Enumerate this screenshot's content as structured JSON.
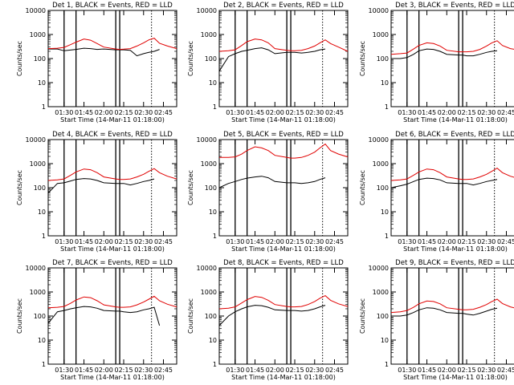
{
  "figure": {
    "xlabel": "Start Time (14-Mar-11 01:18:00)",
    "ylabel": "Counts/sec",
    "xticks": [
      "01:30",
      "01:45",
      "02:00",
      "02:15",
      "02:30",
      "02:45"
    ],
    "yticks": [
      "1",
      "10",
      "100",
      "1000",
      "10000"
    ],
    "series_colors": {
      "events": "#000000",
      "lld": "#e00000"
    }
  },
  "chart_data": [
    {
      "type": "line",
      "title": "Det 1, BLACK = Events, RED = LLD",
      "xlim": [
        "01:18",
        "02:55"
      ],
      "ylim": [
        1,
        10000
      ],
      "yscale": "log",
      "markers": [
        "01:30",
        "01:39",
        "02:09",
        "02:12"
      ],
      "dotted_line": "02:36",
      "series": [
        {
          "name": "Events",
          "x": [
            "01:18",
            "01:25",
            "01:30",
            "01:39",
            "01:45",
            "01:50",
            "01:55",
            "02:00",
            "02:09",
            "02:12",
            "02:15",
            "02:20",
            "02:25",
            "02:30",
            "02:34",
            "02:38",
            "02:42"
          ],
          "y": [
            250,
            250,
            210,
            240,
            270,
            260,
            240,
            250,
            230,
            230,
            230,
            220,
            130,
            160,
            180,
            200,
            240
          ]
        },
        {
          "name": "LLD",
          "x": [
            "01:18",
            "01:25",
            "01:30",
            "01:35",
            "01:39",
            "01:45",
            "01:50",
            "01:55",
            "02:00",
            "02:09",
            "02:12",
            "02:15",
            "02:20",
            "02:25",
            "02:30",
            "02:34",
            "02:38",
            "02:42",
            "02:48",
            "02:55"
          ],
          "y": [
            260,
            270,
            290,
            380,
            480,
            650,
            580,
            420,
            300,
            250,
            240,
            245,
            260,
            330,
            450,
            600,
            700,
            430,
            330,
            260
          ]
        }
      ]
    },
    {
      "type": "line",
      "title": "Det 2, BLACK = Events, RED = LLD",
      "xlim": [
        "01:18",
        "02:55"
      ],
      "ylim": [
        1,
        10000
      ],
      "yscale": "log",
      "markers": [
        "01:30",
        "01:39",
        "02:09",
        "02:12"
      ],
      "dotted_line": "02:36",
      "series": [
        {
          "name": "Events",
          "x": [
            "01:18",
            "01:25",
            "01:30",
            "01:35",
            "01:39",
            "01:45",
            "01:50",
            "01:55",
            "02:00",
            "02:09",
            "02:12",
            "02:15",
            "02:20",
            "02:25",
            "02:30",
            "02:34",
            "02:38"
          ],
          "y": [
            30,
            120,
            160,
            200,
            220,
            260,
            280,
            230,
            160,
            180,
            180,
            180,
            170,
            180,
            200,
            230,
            250
          ]
        },
        {
          "name": "LLD",
          "x": [
            "01:18",
            "01:25",
            "01:30",
            "01:35",
            "01:39",
            "01:45",
            "01:50",
            "01:55",
            "02:00",
            "02:09",
            "02:12",
            "02:15",
            "02:20",
            "02:25",
            "02:30",
            "02:34",
            "02:38",
            "02:42",
            "02:48",
            "02:55"
          ],
          "y": [
            200,
            210,
            230,
            350,
            500,
            650,
            600,
            450,
            260,
            220,
            210,
            210,
            220,
            260,
            330,
            450,
            600,
            420,
            300,
            200
          ]
        }
      ]
    },
    {
      "type": "line",
      "title": "Det 3, BLACK = Events, RED = LLD",
      "xlim": [
        "01:18",
        "02:55"
      ],
      "ylim": [
        1,
        10000
      ],
      "yscale": "log",
      "markers": [
        "01:30",
        "01:39",
        "02:09",
        "02:12"
      ],
      "dotted_line": "02:36",
      "series": [
        {
          "name": "Events",
          "x": [
            "01:18",
            "01:25",
            "01:30",
            "01:35",
            "01:39",
            "01:45",
            "01:50",
            "01:55",
            "02:00",
            "02:09",
            "02:12",
            "02:15",
            "02:20",
            "02:25",
            "02:30",
            "02:34",
            "02:38"
          ],
          "y": [
            100,
            100,
            110,
            150,
            210,
            250,
            240,
            200,
            150,
            140,
            140,
            130,
            130,
            150,
            180,
            200,
            210
          ]
        },
        {
          "name": "LLD",
          "x": [
            "01:18",
            "01:25",
            "01:30",
            "01:35",
            "01:39",
            "01:45",
            "01:50",
            "01:55",
            "02:00",
            "02:09",
            "02:12",
            "02:15",
            "02:20",
            "02:25",
            "02:30",
            "02:34",
            "02:38",
            "02:42",
            "02:48",
            "02:55"
          ],
          "y": [
            150,
            160,
            170,
            250,
            350,
            450,
            420,
            330,
            220,
            190,
            190,
            190,
            200,
            240,
            330,
            450,
            550,
            350,
            260,
            220
          ]
        }
      ]
    },
    {
      "type": "line",
      "title": "Det 4, BLACK = Events, RED = LLD",
      "xlim": [
        "01:18",
        "02:55"
      ],
      "ylim": [
        1,
        10000
      ],
      "yscale": "log",
      "markers": [
        "01:30",
        "01:39",
        "02:09",
        "02:12"
      ],
      "dotted_line": "02:36",
      "series": [
        {
          "name": "Events",
          "x": [
            "01:18",
            "01:25",
            "01:30",
            "01:35",
            "01:39",
            "01:45",
            "01:50",
            "01:55",
            "02:00",
            "02:09",
            "02:12",
            "02:15",
            "02:20",
            "02:25",
            "02:30",
            "02:34",
            "02:38"
          ],
          "y": [
            60,
            150,
            160,
            190,
            220,
            240,
            230,
            200,
            160,
            150,
            150,
            150,
            130,
            150,
            180,
            200,
            230
          ]
        },
        {
          "name": "LLD",
          "x": [
            "01:18",
            "01:25",
            "01:30",
            "01:35",
            "01:39",
            "01:45",
            "01:50",
            "01:55",
            "02:00",
            "02:09",
            "02:12",
            "02:15",
            "02:20",
            "02:25",
            "02:30",
            "02:34",
            "02:38",
            "02:42",
            "02:48",
            "02:55"
          ],
          "y": [
            200,
            210,
            230,
            330,
            450,
            600,
            560,
            420,
            280,
            230,
            220,
            220,
            230,
            280,
            360,
            480,
            620,
            420,
            300,
            230
          ]
        }
      ]
    },
    {
      "type": "line",
      "title": "Det 5, BLACK = Events, RED = LLD",
      "xlim": [
        "01:18",
        "02:55"
      ],
      "ylim": [
        1,
        10000
      ],
      "yscale": "log",
      "markers": [
        "01:30",
        "01:39",
        "02:09",
        "02:12"
      ],
      "dotted_line": "02:36",
      "series": [
        {
          "name": "Events",
          "x": [
            "01:18",
            "01:25",
            "01:30",
            "01:35",
            "01:39",
            "01:45",
            "01:50",
            "01:55",
            "02:00",
            "02:09",
            "02:12",
            "02:15",
            "02:20",
            "02:25",
            "02:30",
            "02:34",
            "02:38"
          ],
          "y": [
            100,
            150,
            180,
            220,
            250,
            280,
            300,
            260,
            180,
            160,
            160,
            160,
            150,
            160,
            180,
            220,
            260
          ]
        },
        {
          "name": "LLD",
          "x": [
            "01:18",
            "01:25",
            "01:30",
            "01:35",
            "01:39",
            "01:45",
            "01:50",
            "01:55",
            "02:00",
            "02:09",
            "02:12",
            "02:15",
            "02:20",
            "02:25",
            "02:30",
            "02:34",
            "02:38",
            "02:42",
            "02:48",
            "02:55"
          ],
          "y": [
            1800,
            1800,
            1900,
            2500,
            3500,
            5000,
            4500,
            3500,
            2200,
            1800,
            1700,
            1700,
            1800,
            2200,
            3000,
            4500,
            6500,
            3500,
            2500,
            1900
          ]
        }
      ]
    },
    {
      "type": "line",
      "title": "Det 6, BLACK = Events, RED = LLD",
      "xlim": [
        "01:18",
        "02:55"
      ],
      "ylim": [
        1,
        10000
      ],
      "yscale": "log",
      "markers": [
        "01:30",
        "01:39",
        "02:09",
        "02:12"
      ],
      "dotted_line": "02:36",
      "series": [
        {
          "name": "Events",
          "x": [
            "01:18",
            "01:25",
            "01:30",
            "01:35",
            "01:39",
            "01:45",
            "01:50",
            "01:55",
            "02:00",
            "02:09",
            "02:12",
            "02:15",
            "02:20",
            "02:25",
            "02:30",
            "02:34",
            "02:38"
          ],
          "y": [
            100,
            120,
            140,
            180,
            220,
            250,
            240,
            210,
            160,
            150,
            150,
            150,
            130,
            150,
            180,
            200,
            220
          ]
        },
        {
          "name": "LLD",
          "x": [
            "01:18",
            "01:25",
            "01:30",
            "01:35",
            "01:39",
            "01:45",
            "01:50",
            "01:55",
            "02:00",
            "02:09",
            "02:12",
            "02:15",
            "02:20",
            "02:25",
            "02:30",
            "02:34",
            "02:38",
            "02:42",
            "02:48",
            "02:55"
          ],
          "y": [
            200,
            210,
            230,
            330,
            450,
            600,
            560,
            420,
            280,
            230,
            220,
            220,
            230,
            280,
            360,
            480,
            650,
            420,
            300,
            230
          ]
        }
      ]
    },
    {
      "type": "line",
      "title": "Det 7, BLACK = Events, RED = LLD",
      "xlim": [
        "01:18",
        "02:55"
      ],
      "ylim": [
        1,
        10000
      ],
      "yscale": "log",
      "markers": [
        "01:30",
        "01:39",
        "02:09",
        "02:12"
      ],
      "dotted_line": "02:36",
      "series": [
        {
          "name": "Events",
          "x": [
            "01:18",
            "01:25",
            "01:30",
            "01:35",
            "01:39",
            "01:45",
            "01:50",
            "01:55",
            "02:00",
            "02:09",
            "02:12",
            "02:15",
            "02:20",
            "02:25",
            "02:30",
            "02:34",
            "02:38",
            "02:42"
          ],
          "y": [
            50,
            150,
            170,
            200,
            220,
            250,
            240,
            210,
            170,
            160,
            160,
            150,
            140,
            150,
            180,
            200,
            230,
            40
          ]
        },
        {
          "name": "LLD",
          "x": [
            "01:18",
            "01:25",
            "01:30",
            "01:35",
            "01:39",
            "01:45",
            "01:50",
            "01:55",
            "02:00",
            "02:09",
            "02:12",
            "02:15",
            "02:20",
            "02:25",
            "02:30",
            "02:34",
            "02:38",
            "02:42",
            "02:48",
            "02:55"
          ],
          "y": [
            220,
            230,
            250,
            340,
            460,
            620,
            580,
            430,
            290,
            240,
            230,
            230,
            240,
            290,
            380,
            500,
            660,
            430,
            310,
            240
          ]
        }
      ]
    },
    {
      "type": "line",
      "title": "Det 8, BLACK = Events, RED = LLD",
      "xlim": [
        "01:18",
        "02:55"
      ],
      "ylim": [
        1,
        10000
      ],
      "yscale": "log",
      "markers": [
        "01:30",
        "01:39",
        "02:09",
        "02:12"
      ],
      "dotted_line": "02:36",
      "series": [
        {
          "name": "Events",
          "x": [
            "01:18",
            "01:25",
            "01:30",
            "01:35",
            "01:39",
            "01:45",
            "01:50",
            "01:55",
            "02:00",
            "02:09",
            "02:12",
            "02:15",
            "02:20",
            "02:25",
            "02:30",
            "02:34",
            "02:38"
          ],
          "y": [
            40,
            100,
            150,
            200,
            240,
            280,
            270,
            230,
            180,
            170,
            170,
            170,
            160,
            170,
            200,
            240,
            280
          ]
        },
        {
          "name": "LLD",
          "x": [
            "01:18",
            "01:25",
            "01:30",
            "01:35",
            "01:39",
            "01:45",
            "01:50",
            "01:55",
            "02:00",
            "02:09",
            "02:12",
            "02:15",
            "02:20",
            "02:25",
            "02:30",
            "02:34",
            "02:38",
            "02:42",
            "02:48",
            "02:55"
          ],
          "y": [
            200,
            210,
            240,
            350,
            480,
            650,
            600,
            450,
            300,
            250,
            240,
            240,
            250,
            300,
            400,
            550,
            700,
            450,
            320,
            250
          ]
        }
      ]
    },
    {
      "type": "line",
      "title": "Det 9, BLACK = Events, RED = LLD",
      "xlim": [
        "01:18",
        "02:55"
      ],
      "ylim": [
        1,
        10000
      ],
      "yscale": "log",
      "markers": [
        "01:30",
        "01:39",
        "02:09",
        "02:12"
      ],
      "dotted_line": "02:36",
      "series": [
        {
          "name": "Events",
          "x": [
            "01:18",
            "01:25",
            "01:30",
            "01:35",
            "01:39",
            "01:45",
            "01:50",
            "01:55",
            "02:00",
            "02:09",
            "02:12",
            "02:15",
            "02:20",
            "02:25",
            "02:30",
            "02:34",
            "02:38"
          ],
          "y": [
            100,
            100,
            110,
            140,
            180,
            220,
            210,
            180,
            140,
            130,
            130,
            120,
            110,
            130,
            160,
            190,
            210
          ]
        },
        {
          "name": "LLD",
          "x": [
            "01:18",
            "01:25",
            "01:30",
            "01:35",
            "01:39",
            "01:45",
            "01:50",
            "01:55",
            "02:00",
            "02:09",
            "02:12",
            "02:15",
            "02:20",
            "02:25",
            "02:30",
            "02:34",
            "02:38",
            "02:42",
            "02:48",
            "02:55"
          ],
          "y": [
            140,
            150,
            170,
            230,
            320,
            420,
            400,
            320,
            220,
            190,
            180,
            180,
            190,
            230,
            300,
            400,
            500,
            330,
            240,
            190
          ]
        }
      ]
    }
  ]
}
